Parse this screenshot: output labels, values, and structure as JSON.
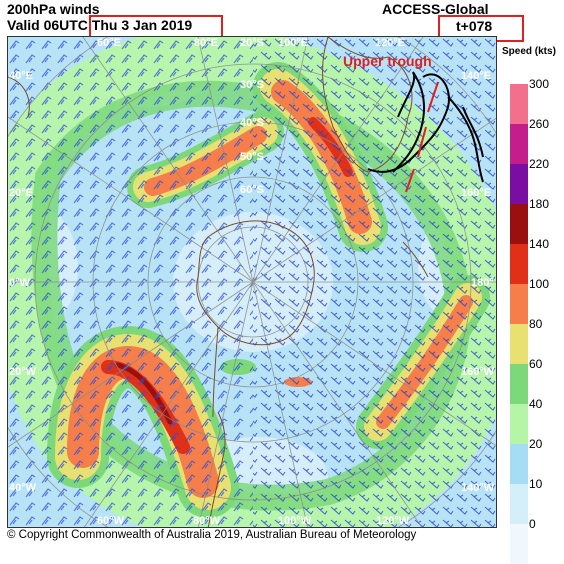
{
  "header": {
    "title": "200hPa winds",
    "valid": "Valid 06UTC Thu 3 Jan 2019",
    "model": "ACCESS-Global",
    "lead_time": "t+078"
  },
  "annotation": {
    "upper_trough": "Upper trough",
    "color": "#e02020"
  },
  "map_labels": {
    "top": [
      "60°E",
      "80°E",
      "100°E",
      "120°E"
    ],
    "bottom": [
      "60°W",
      "80°W",
      "100°W",
      "120°W"
    ],
    "left": [
      "40°E",
      "20°E",
      "0°W",
      "20°W",
      "40°W"
    ],
    "right": [
      "140°E",
      "160°E",
      "180°",
      "160°W",
      "140°W"
    ],
    "latitudes": [
      "20°S",
      "30°S",
      "40°S",
      "50°S",
      "60°S"
    ]
  },
  "legend": {
    "title": "Speed (kts)",
    "ticks": [
      "300",
      "260",
      "220",
      "180",
      "140",
      "100",
      "80",
      "60",
      "40",
      "20",
      "10",
      "0"
    ],
    "colors": [
      "#f2708c",
      "#c41e8c",
      "#7a0ea3",
      "#9a0f0f",
      "#e03018",
      "#f57e4a",
      "#e8e070",
      "#7dd87a",
      "#b6f5a8",
      "#a6dcf4",
      "#d4eefa",
      "#f0f8fd"
    ]
  },
  "copyright": "© Copyright Commonwealth of Australia 2019, Australian Bureau of Meteorology"
}
